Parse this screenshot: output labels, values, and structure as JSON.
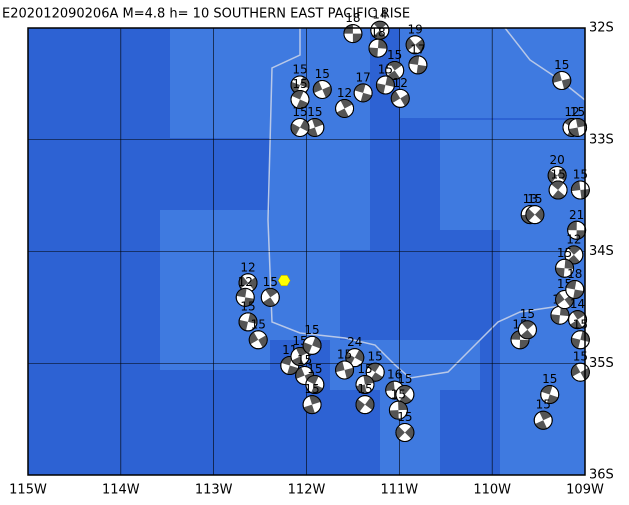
{
  "title": "E202012090206A M=4.8 h= 10 SOUTHERN EAST PACIFIC RISE",
  "xlim": [
    -115,
    -109
  ],
  "ylim": [
    -36,
    -32
  ],
  "xticks": [
    {
      "value": -115,
      "label": "115W"
    },
    {
      "value": -114,
      "label": "114W"
    },
    {
      "value": -113,
      "label": "113W"
    },
    {
      "value": -112,
      "label": "112W"
    },
    {
      "value": -111,
      "label": "111W"
    },
    {
      "value": -110,
      "label": "110W"
    },
    {
      "value": -109,
      "label": "109W"
    }
  ],
  "yticks": [
    {
      "value": -32,
      "label": "32S"
    },
    {
      "value": -33,
      "label": "33S"
    },
    {
      "value": -34,
      "label": "34S"
    },
    {
      "value": -35,
      "label": "35S"
    },
    {
      "value": -36,
      "label": "36S"
    }
  ],
  "epicenter": {
    "lon": -112.24,
    "lat": -34.26
  },
  "events": [
    {
      "lon": -111.5,
      "lat": -32.05,
      "depth": 18
    },
    {
      "lon": -111.21,
      "lat": -32.02,
      "depth": 14
    },
    {
      "lon": -111.23,
      "lat": -32.18,
      "depth": 18
    },
    {
      "lon": -110.83,
      "lat": -32.15,
      "depth": 19
    },
    {
      "lon": -110.8,
      "lat": -32.33,
      "depth": 17
    },
    {
      "lon": -111.05,
      "lat": -32.38,
      "depth": 15
    },
    {
      "lon": -111.15,
      "lat": -32.51,
      "depth": 15
    },
    {
      "lon": -110.99,
      "lat": -32.63,
      "depth": 12
    },
    {
      "lon": -111.39,
      "lat": -32.58,
      "depth": 17
    },
    {
      "lon": -111.59,
      "lat": -32.72,
      "depth": 12
    },
    {
      "lon": -112.07,
      "lat": -32.51,
      "depth": 15
    },
    {
      "lon": -111.83,
      "lat": -32.55,
      "depth": 15
    },
    {
      "lon": -112.07,
      "lat": -32.64,
      "depth": 15
    },
    {
      "lon": -111.91,
      "lat": -32.89,
      "depth": 15
    },
    {
      "lon": -112.07,
      "lat": -32.89,
      "depth": 15
    },
    {
      "lon": -109.25,
      "lat": -32.47,
      "depth": 15
    },
    {
      "lon": -109.14,
      "lat": -32.89,
      "depth": 12
    },
    {
      "lon": -109.08,
      "lat": -32.89,
      "depth": 15
    },
    {
      "lon": -109.3,
      "lat": -33.32,
      "depth": 20
    },
    {
      "lon": -109.05,
      "lat": -33.45,
      "depth": 15
    },
    {
      "lon": -109.29,
      "lat": -33.45,
      "depth": 15
    },
    {
      "lon": -109.59,
      "lat": -33.67,
      "depth": 13
    },
    {
      "lon": -109.54,
      "lat": -33.67,
      "depth": 15
    },
    {
      "lon": -109.09,
      "lat": -33.81,
      "depth": 21
    },
    {
      "lon": -109.12,
      "lat": -34.03,
      "depth": 12
    },
    {
      "lon": -109.22,
      "lat": -34.15,
      "depth": 15
    },
    {
      "lon": -112.63,
      "lat": -34.28,
      "depth": 12
    },
    {
      "lon": -112.66,
      "lat": -34.41,
      "depth": 12
    },
    {
      "lon": -112.39,
      "lat": -34.41,
      "depth": 15
    },
    {
      "lon": -112.63,
      "lat": -34.63,
      "depth": 15
    },
    {
      "lon": -112.52,
      "lat": -34.79,
      "depth": 15
    },
    {
      "lon": -112.18,
      "lat": -35.02,
      "depth": 11
    },
    {
      "lon": -112.07,
      "lat": -34.94,
      "depth": 15
    },
    {
      "lon": -111.94,
      "lat": -34.84,
      "depth": 15
    },
    {
      "lon": -112.02,
      "lat": -35.11,
      "depth": 15
    },
    {
      "lon": -111.91,
      "lat": -35.19,
      "depth": 15
    },
    {
      "lon": -111.94,
      "lat": -35.37,
      "depth": 15
    },
    {
      "lon": -111.48,
      "lat": -34.95,
      "depth": 24
    },
    {
      "lon": -111.59,
      "lat": -35.06,
      "depth": 15
    },
    {
      "lon": -111.26,
      "lat": -35.08,
      "depth": 15
    },
    {
      "lon": -111.37,
      "lat": -35.19,
      "depth": 15
    },
    {
      "lon": -111.37,
      "lat": -35.37,
      "depth": 15
    },
    {
      "lon": -111.05,
      "lat": -35.24,
      "depth": 16
    },
    {
      "lon": -110.94,
      "lat": -35.28,
      "depth": 15
    },
    {
      "lon": -111.01,
      "lat": -35.42,
      "depth": 15
    },
    {
      "lon": -110.94,
      "lat": -35.62,
      "depth": 15
    },
    {
      "lon": -109.7,
      "lat": -34.79,
      "depth": 15
    },
    {
      "lon": -109.62,
      "lat": -34.7,
      "depth": 15
    },
    {
      "lon": -109.27,
      "lat": -34.57,
      "depth": 15
    },
    {
      "lon": -109.22,
      "lat": -34.43,
      "depth": 15
    },
    {
      "lon": -109.11,
      "lat": -34.34,
      "depth": 18
    },
    {
      "lon": -109.08,
      "lat": -34.61,
      "depth": 14
    },
    {
      "lon": -109.05,
      "lat": -34.79,
      "depth": 15
    },
    {
      "lon": -109.05,
      "lat": -35.08,
      "depth": 15
    },
    {
      "lon": -109.38,
      "lat": -35.28,
      "depth": 15
    },
    {
      "lon": -109.45,
      "lat": -35.51,
      "depth": 15
    }
  ]
}
